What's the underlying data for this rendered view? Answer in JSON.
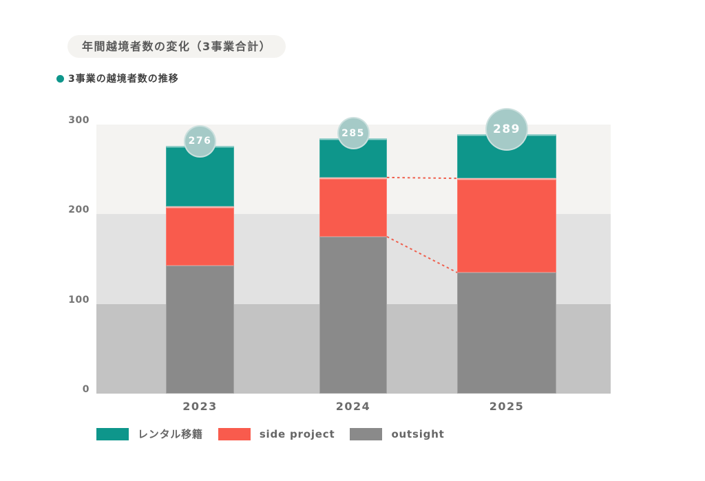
{
  "chart_data": {
    "type": "bar",
    "stacked": true,
    "title": "年間越境者数の変化（3事業合計）",
    "subtitle": "3事業の越境者数の推移",
    "subtitle_dot_color": "#0e968b",
    "categories": [
      "2023",
      "2024",
      "2025"
    ],
    "series": [
      {
        "name": "outsight",
        "slug": "outsight",
        "color": "#8a8a8a",
        "values": [
          143,
          175,
          135
        ]
      },
      {
        "name": "side project",
        "slug": "side-project",
        "color": "#f95b4d",
        "values": [
          66,
          66,
          105
        ]
      },
      {
        "name": "レンタル移籍",
        "slug": "rental-transfer",
        "color": "#0e968b",
        "values": [
          67,
          44,
          49
        ]
      }
    ],
    "totals": [
      276,
      285,
      289
    ],
    "ylim": [
      0,
      300
    ],
    "yticks": [
      0,
      100,
      200,
      300
    ],
    "xlabel": "",
    "ylabel": "",
    "grid": false,
    "legend_position": "bottom-left",
    "legend": [
      {
        "label": "レンタル移籍",
        "color": "#0e968b"
      },
      {
        "label": "side project",
        "color": "#f95b4d"
      },
      {
        "label": "outsight",
        "color": "#8a8a8a"
      }
    ],
    "band_colors": [
      "#f4f3f1",
      "#e2e2e2",
      "#c3c3c3"
    ],
    "bubble_color": "#a5cac7",
    "bubble_text_color": "#ffffff",
    "connector_color": "#ef5f4d",
    "connectors": [
      {
        "between": [
          1,
          2
        ],
        "stack_level": 2,
        "boundary": "side project / レンタル移籍"
      },
      {
        "between": [
          1,
          2
        ],
        "stack_level": 1,
        "boundary": "outsight / side project"
      }
    ]
  }
}
